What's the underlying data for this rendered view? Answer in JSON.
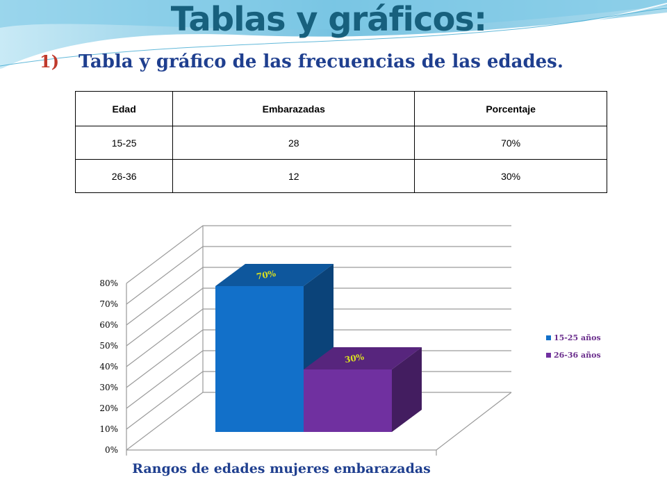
{
  "slide": {
    "title": "Tablas y gráficos:",
    "subtitle_number": "1)",
    "subtitle": "Tabla y gráfico de las frecuencias de las edades."
  },
  "table": {
    "headers": [
      "Edad",
      "Embarazadas",
      "Porcentaje"
    ],
    "rows": [
      [
        "15-25",
        "28",
        "70%"
      ],
      [
        "26-36",
        "12",
        "30%"
      ]
    ]
  },
  "chart_data": {
    "type": "bar",
    "title": "Rangos de edades mujeres embarazadas",
    "categories": [
      "15-25 años",
      "26-36 años"
    ],
    "values": [
      70,
      30
    ],
    "data_labels": [
      "70%",
      "30%"
    ],
    "colors": [
      "#1270c9",
      "#7030a0"
    ],
    "ylim": [
      0,
      80
    ],
    "yticks": [
      "0%",
      "10%",
      "20%",
      "30%",
      "40%",
      "50%",
      "60%",
      "70%",
      "80%"
    ],
    "legend_position": "right",
    "grid": true,
    "three_d": true
  }
}
